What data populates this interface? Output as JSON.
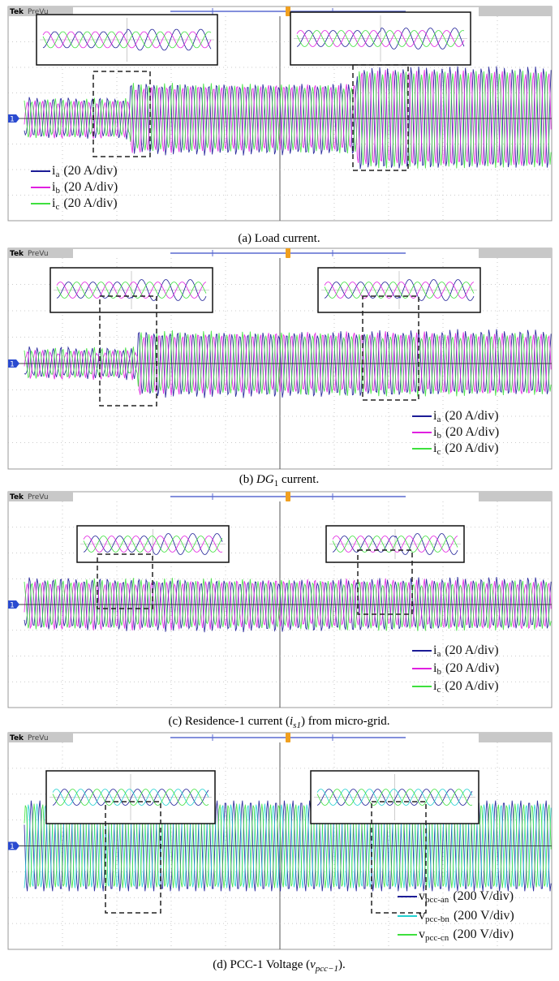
{
  "panels": [
    {
      "header": {
        "brand": "Tek",
        "mode": "PreVu"
      },
      "channel": "1",
      "legend": [
        {
          "symbol": "i",
          "sub": "a",
          "scale": "(20 A/div)",
          "color": "#1c1c96"
        },
        {
          "symbol": "i",
          "sub": "b",
          "scale": "(20 A/div)",
          "color": "#e020e0"
        },
        {
          "symbol": "i",
          "sub": "c",
          "scale": "(20 A/div)",
          "color": "#3ee03e"
        }
      ],
      "caption": [
        {
          "text": "(a) Load current."
        }
      ]
    },
    {
      "header": {
        "brand": "Tek",
        "mode": "PreVu"
      },
      "channel": "1",
      "legend": [
        {
          "symbol": "i",
          "sub": "a",
          "scale": "(20 A/div)",
          "color": "#1c1c96"
        },
        {
          "symbol": "i",
          "sub": "b",
          "scale": "(20 A/div)",
          "color": "#e020e0"
        },
        {
          "symbol": "i",
          "sub": "c",
          "scale": "(20 A/div)",
          "color": "#3ee03e"
        }
      ],
      "caption": [
        {
          "text": "(b) "
        },
        {
          "text": "DG",
          "italic": true
        },
        {
          "text": "1",
          "sub": true
        },
        {
          "text": " current."
        }
      ]
    },
    {
      "header": {
        "brand": "Tek",
        "mode": "PreVu"
      },
      "channel": "1",
      "legend": [
        {
          "symbol": "i",
          "sub": "a",
          "scale": "(20 A/div)",
          "color": "#1c1c96"
        },
        {
          "symbol": "i",
          "sub": "b",
          "scale": "(20 A/div)",
          "color": "#e020e0"
        },
        {
          "symbol": "i",
          "sub": "c",
          "scale": "(20 A/div)",
          "color": "#3ee03e"
        }
      ],
      "caption": [
        {
          "text": "(c) Residence-1 current ("
        },
        {
          "text": "i",
          "italic": true
        },
        {
          "text": "s1",
          "sub": true,
          "italic": true
        },
        {
          "text": ") from micro-grid."
        }
      ]
    },
    {
      "header": {
        "brand": "Tek",
        "mode": "PreVu"
      },
      "channel": "1",
      "legend": [
        {
          "symbol": "v",
          "sub": "pcc-an",
          "scale": "(200 V/div)",
          "color": "#1c1c96"
        },
        {
          "symbol": "v",
          "sub": "pcc-bn",
          "scale": "(200 V/div)",
          "color": "#22d0d0"
        },
        {
          "symbol": "v",
          "sub": "pcc-cn",
          "scale": "(200 V/div)",
          "color": "#3ee03e"
        }
      ],
      "caption": [
        {
          "text": "(d) PCC-1 Voltage ("
        },
        {
          "text": "v",
          "italic": true
        },
        {
          "text": "pcc−1",
          "sub": true,
          "italic": true
        },
        {
          "text": ")."
        }
      ]
    }
  ]
}
